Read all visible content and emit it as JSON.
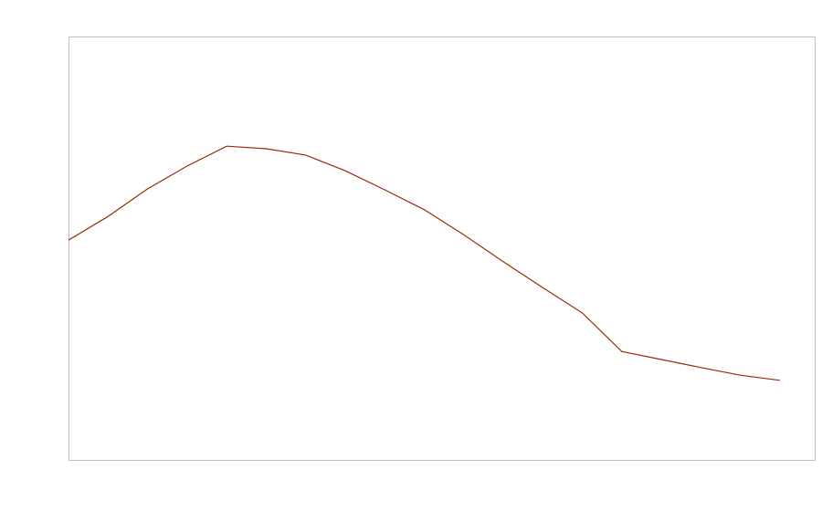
{
  "chart_data": {
    "type": "line",
    "title": "",
    "xlabel": "",
    "ylabel": "",
    "x": [
      0,
      1,
      2,
      3,
      4,
      5,
      6,
      7,
      8,
      9,
      10,
      11,
      12,
      13,
      14,
      15,
      16,
      17,
      18
    ],
    "series": [
      {
        "values": [
          51.9,
          57.5,
          64.0,
          69.4,
          74.1,
          73.5,
          72.0,
          68.3,
          63.8,
          59.1,
          53.2,
          46.8,
          40.7,
          34.7,
          25.6,
          23.7,
          21.8,
          20.0,
          18.8
        ],
        "color": "#9a2a0a"
      }
    ],
    "xlim": [
      0,
      18.88
    ],
    "ylim": [
      0,
      100
    ],
    "grid": false,
    "legend": "none",
    "axis_labels_shown": false,
    "frame_color": "#c0c0c0"
  }
}
